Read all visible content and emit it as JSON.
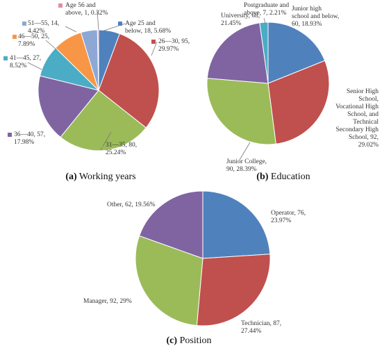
{
  "chart_data": [
    {
      "type": "pie",
      "caption_letter": "(a)",
      "caption_text": " Working years",
      "start_angle_deg": 0,
      "legend_markers": true,
      "colors": [
        "#4F81BD",
        "#C0504D",
        "#9BBB59",
        "#8064A2",
        "#4BACC6",
        "#F79646",
        "#8DA8D4",
        "#E08FA0"
      ],
      "slices": [
        {
          "label": [
            "Age 25 and",
            "below, 18, 5.68%"
          ],
          "value": 18,
          "percent": 5.68
        },
        {
          "label": [
            "26—30, 95,",
            "29.97%"
          ],
          "value": 95,
          "percent": 29.97
        },
        {
          "label": [
            "31—35, 80,",
            "25.24%"
          ],
          "value": 80,
          "percent": 25.24
        },
        {
          "label": [
            "36—40, 57,",
            "17.98%"
          ],
          "value": 57,
          "percent": 17.98
        },
        {
          "label": [
            "41—45, 27,",
            "8.52%"
          ],
          "value": 27,
          "percent": 8.52
        },
        {
          "label": [
            "46—50, 25,",
            "7.89%"
          ],
          "value": 25,
          "percent": 7.89
        },
        {
          "label": [
            "51—55, 14,",
            "4.42%"
          ],
          "value": 14,
          "percent": 4.42
        },
        {
          "label": [
            "Age 56 and",
            "above, 1, 0.32%"
          ],
          "value": 1,
          "percent": 0.32
        }
      ]
    },
    {
      "type": "pie",
      "caption_letter": "(b)",
      "caption_text": " Education",
      "start_angle_deg": 0,
      "legend_markers": false,
      "colors": [
        "#4F81BD",
        "#C0504D",
        "#9BBB59",
        "#8064A2",
        "#4BACC6"
      ],
      "slices": [
        {
          "label": [
            "Junior high",
            "school and below,",
            "60, 18.93%"
          ],
          "value": 60,
          "percent": 18.93
        },
        {
          "label": [
            "Senior High",
            "School,",
            "Vocational High",
            "School, and",
            "Technical",
            "Secondary High",
            "School, 92,",
            "29.02%"
          ],
          "value": 92,
          "percent": 29.02
        },
        {
          "label": [
            "Junior College,",
            "90, 28.39%"
          ],
          "value": 90,
          "percent": 28.39
        },
        {
          "label": [
            "University, 68,",
            "21.45%"
          ],
          "value": 68,
          "percent": 21.45
        },
        {
          "label": [
            "Postgraduate and",
            "above, 7, 2.21%"
          ],
          "value": 7,
          "percent": 2.21
        }
      ]
    },
    {
      "type": "pie",
      "caption_letter": "(c)",
      "caption_text": " Position",
      "start_angle_deg": 0,
      "legend_markers": false,
      "colors": [
        "#4F81BD",
        "#C0504D",
        "#9BBB59",
        "#8064A2"
      ],
      "slices": [
        {
          "label": [
            "Operator, 76,",
            "23.97%"
          ],
          "value": 76,
          "percent": 23.97
        },
        {
          "label": [
            "Technician, 87,",
            "27.44%"
          ],
          "value": 87,
          "percent": 27.44
        },
        {
          "label": [
            "Manager, 92, 29%"
          ],
          "value": 92,
          "percent": 29
        },
        {
          "label": [
            "Other, 62, 19.56%"
          ],
          "value": 62,
          "percent": 19.56
        }
      ]
    }
  ]
}
